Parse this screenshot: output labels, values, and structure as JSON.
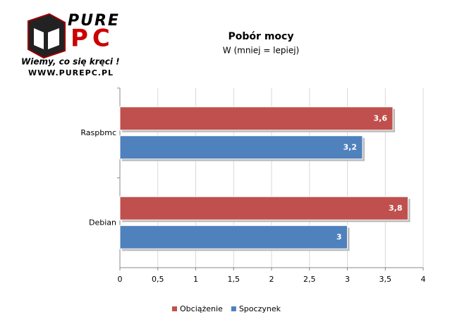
{
  "logo": {
    "name1": "PURE",
    "name2": "PC",
    "tagline": "Wiemy, co się kręci !",
    "url": "WWW.PUREPC.PL"
  },
  "chart_data": {
    "type": "hbar",
    "title": "Pobór mocy",
    "subtitle": "W (mniej = lepiej)",
    "categories": [
      "Raspbmc",
      "Debian"
    ],
    "series": [
      {
        "name": "Obciążenie",
        "color": "#c0504d",
        "values": [
          3.6,
          3.8
        ],
        "value_labels": [
          "3,6",
          "3,8"
        ]
      },
      {
        "name": "Spoczynek",
        "color": "#4f81bd",
        "values": [
          3.2,
          3
        ],
        "value_labels": [
          "3,2",
          "3"
        ]
      }
    ],
    "xlim": [
      0,
      4
    ],
    "xticks": [
      0,
      {
        "value": 0.5,
        "label": "0,5"
      },
      1,
      {
        "value": 1.5,
        "label": "1,5"
      },
      2,
      {
        "value": 2.5,
        "label": "2,5"
      },
      3,
      {
        "value": 3.5,
        "label": "3,5"
      },
      4
    ],
    "grid": true,
    "legend": "bottom"
  }
}
